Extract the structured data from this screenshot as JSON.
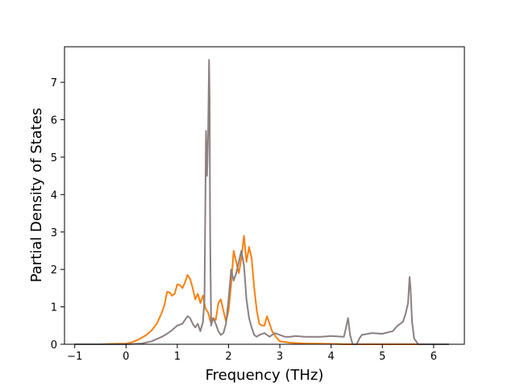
{
  "chart_data": {
    "type": "line",
    "title": "",
    "xlabel": "Frequency (THz)",
    "ylabel": "Partial Density of States",
    "xlim": [
      -1.2,
      6.6
    ],
    "ylim": [
      0,
      7.95
    ],
    "xticks": [
      -1,
      0,
      1,
      2,
      3,
      4,
      5,
      6
    ],
    "yticks": [
      0,
      1,
      2,
      3,
      4,
      5,
      6,
      7
    ],
    "grid": false,
    "legend": "none",
    "series": [
      {
        "color": "#ff7f0e",
        "x": [
          -1.0,
          -0.5,
          -0.3,
          0.0,
          0.1,
          0.2,
          0.3,
          0.4,
          0.5,
          0.6,
          0.7,
          0.75,
          0.8,
          0.85,
          0.9,
          0.95,
          1.0,
          1.05,
          1.1,
          1.15,
          1.2,
          1.25,
          1.3,
          1.35,
          1.4,
          1.45,
          1.5,
          1.55,
          1.6,
          1.65,
          1.7,
          1.75,
          1.8,
          1.85,
          1.9,
          1.95,
          2.0,
          2.05,
          2.1,
          2.15,
          2.2,
          2.25,
          2.3,
          2.35,
          2.4,
          2.45,
          2.5,
          2.55,
          2.6,
          2.65,
          2.7,
          2.75,
          2.8,
          2.85,
          2.9,
          2.95,
          3.0,
          3.2,
          3.5,
          4.0,
          4.3,
          4.5,
          5.0,
          5.5,
          5.7
        ],
        "y": [
          0.0,
          0.0,
          0.01,
          0.02,
          0.05,
          0.1,
          0.17,
          0.25,
          0.37,
          0.55,
          0.85,
          1.05,
          1.4,
          1.38,
          1.3,
          1.35,
          1.6,
          1.58,
          1.5,
          1.65,
          1.85,
          1.75,
          1.5,
          1.2,
          1.35,
          1.1,
          1.3,
          0.95,
          0.85,
          0.6,
          0.7,
          0.65,
          1.1,
          1.2,
          0.9,
          0.6,
          0.9,
          1.6,
          2.5,
          2.2,
          1.9,
          2.3,
          2.9,
          2.2,
          2.6,
          2.3,
          1.5,
          0.9,
          0.55,
          0.5,
          0.5,
          0.75,
          0.55,
          0.35,
          0.25,
          0.15,
          0.08,
          0.04,
          0.02,
          0.01,
          0.0,
          0.0,
          0.0,
          0.0,
          0.0
        ]
      },
      {
        "color": "#8c7f80",
        "x": [
          -1.0,
          0.0,
          0.3,
          0.5,
          0.7,
          0.8,
          0.9,
          1.0,
          1.1,
          1.15,
          1.2,
          1.25,
          1.3,
          1.35,
          1.4,
          1.45,
          1.5,
          1.53,
          1.56,
          1.58,
          1.6,
          1.62,
          1.63,
          1.64,
          1.66,
          1.68,
          1.7,
          1.75,
          1.8,
          1.85,
          1.9,
          1.95,
          2.0,
          2.05,
          2.1,
          2.15,
          2.2,
          2.25,
          2.3,
          2.35,
          2.4,
          2.45,
          2.5,
          2.55,
          2.6,
          2.7,
          2.8,
          2.9,
          3.0,
          3.1,
          3.2,
          3.3,
          3.5,
          3.8,
          4.0,
          4.25,
          4.3,
          4.33,
          4.37,
          4.42,
          4.5,
          4.55,
          4.6,
          4.8,
          5.0,
          5.2,
          5.3,
          5.4,
          5.45,
          5.5,
          5.53,
          5.55,
          5.58,
          5.62,
          5.7,
          6.3
        ],
        "y": [
          0.0,
          0.0,
          0.02,
          0.08,
          0.2,
          0.28,
          0.38,
          0.5,
          0.55,
          0.65,
          0.75,
          0.7,
          0.55,
          0.45,
          0.55,
          0.35,
          0.6,
          1.2,
          5.7,
          4.5,
          5.6,
          7.6,
          6.5,
          3.0,
          0.5,
          0.6,
          0.7,
          0.55,
          0.35,
          0.25,
          0.3,
          0.55,
          1.2,
          2.0,
          1.7,
          1.9,
          2.2,
          2.5,
          2.1,
          1.2,
          0.7,
          0.45,
          0.25,
          0.2,
          0.25,
          0.3,
          0.2,
          0.3,
          0.25,
          0.2,
          0.2,
          0.22,
          0.2,
          0.2,
          0.22,
          0.2,
          0.5,
          0.7,
          0.25,
          0.0,
          0.0,
          0.15,
          0.25,
          0.3,
          0.28,
          0.35,
          0.5,
          0.6,
          0.8,
          1.1,
          1.8,
          1.5,
          0.6,
          0.15,
          0.0,
          0.0
        ]
      }
    ]
  }
}
